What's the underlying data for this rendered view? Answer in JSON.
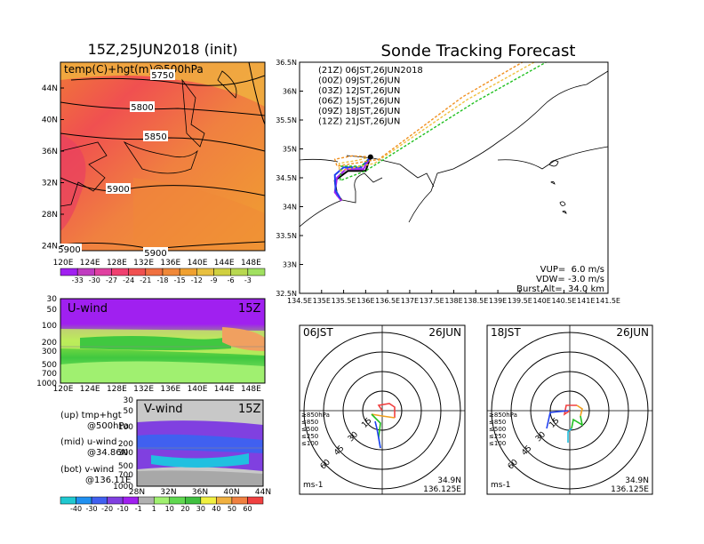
{
  "left_map": {
    "title": "15Z,25JUN2018 (init)",
    "variable_label": "temp(C)+hgt(m)@500hPa",
    "contour_labels": [
      "5750",
      "5800",
      "5850",
      "5900",
      "5900",
      "5900"
    ],
    "lat_labels": [
      "44N",
      "40N",
      "36N",
      "32N",
      "28N",
      "24N"
    ],
    "lon_labels": [
      "120E",
      "124E",
      "128E",
      "132E",
      "136E",
      "140E",
      "144E",
      "148E"
    ]
  },
  "temp_colorbar": {
    "labels": [
      "-33",
      "-30",
      "-27",
      "-24",
      "-21",
      "-18",
      "-15",
      "-12",
      "-9",
      "-6",
      "-3"
    ],
    "colors": [
      "#a020f0",
      "#c03cc0",
      "#e040a0",
      "#f04070",
      "#f05050",
      "#f07040",
      "#f08838",
      "#f0a030",
      "#e8c040",
      "#d0d040",
      "#b8d850",
      "#a0e060"
    ]
  },
  "u_wind": {
    "label": "U-wind",
    "time": "15Z",
    "pressure_labels": [
      "30",
      "50",
      "100",
      "200",
      "300",
      "500",
      "700",
      "1000"
    ],
    "lon_labels": [
      "120E",
      "124E",
      "128E",
      "132E",
      "136E",
      "140E",
      "144E",
      "148E"
    ]
  },
  "v_wind": {
    "label": "V-wind",
    "time": "15Z",
    "pressure_labels": [
      "30",
      "50",
      "100",
      "200",
      "300",
      "500",
      "700",
      "1000"
    ],
    "lat_labels": [
      "28N",
      "32N",
      "36N",
      "40N",
      "44N"
    ]
  },
  "left_legend": {
    "up_1": "(up) tmp+hgt",
    "up_2": "@500hPa",
    "mid_1": "(mid) u-wind",
    "mid_2": "@34.86N",
    "bot_1": "(bot) v-wind",
    "bot_2": "@136.11E"
  },
  "wind_colorbar": {
    "labels": [
      "-40",
      "-30",
      "-20",
      "-10",
      "-1",
      "1",
      "10",
      "20",
      "30",
      "40",
      "50",
      "60"
    ],
    "colors": [
      "#20c8d0",
      "#2090f0",
      "#4060f0",
      "#8040e0",
      "#a020f0",
      "#b0b0b0",
      "#a0f070",
      "#60d850",
      "#40c040",
      "#f0f040",
      "#f0b040",
      "#f08040",
      "#f04040"
    ]
  },
  "sonde": {
    "title": "Sonde Tracking Forecast",
    "legend": [
      {
        "text": "(21Z)  06JST,26JUN2018",
        "color": "#000000"
      },
      {
        "text": "(00Z)  09JST,26JUN",
        "color": "#a020f0"
      },
      {
        "text": "(03Z)  12JST,26JUN",
        "color": "#2040f0"
      },
      {
        "text": "(06Z)  15JST,26JUN",
        "color": "#20c020"
      },
      {
        "text": "(09Z)  18JST,26JUN",
        "color": "#f0c040"
      },
      {
        "text": "(12Z)  21JST,26JUN",
        "color": "#f09020"
      }
    ],
    "vup": "VUP=  6.0 m/s",
    "vdw": "VDW= -3.0 m/s",
    "burst_alt": "Burst Alt=  34.0 km",
    "lat_labels": [
      "36.5N",
      "36N",
      "35.5N",
      "35N",
      "34.5N",
      "34N",
      "33.5N",
      "33N",
      "32.5N"
    ],
    "lon_labels": [
      "134.5E",
      "135E",
      "135.5E",
      "136E",
      "136.5E",
      "137E",
      "137.5E",
      "138E",
      "138.5E",
      "139E",
      "139.5E",
      "140E",
      "140.5E",
      "141E",
      "141.5E"
    ]
  },
  "hodographs": [
    {
      "time_label": "06JST",
      "date_label": "26JUN",
      "lat": "34.9N",
      "lon": "136.125E",
      "unit": "ms-1"
    },
    {
      "time_label": "18JST",
      "date_label": "26JUN",
      "lat": "34.9N",
      "lon": "136.125E",
      "unit": "ms-1"
    }
  ],
  "hodograph_ring_labels": [
    "15",
    "30",
    "45",
    "60"
  ],
  "hodograph_level_labels": [
    "≥850hPa",
    "≤850",
    "≤500",
    "≤250",
    "≤100"
  ],
  "hodograph_level_colors": [
    "#f04040",
    "#f0a020",
    "#20c020",
    "#20c0e0",
    "#2040f0"
  ],
  "chart_data": [
    {
      "type": "line",
      "title": "Sonde Tracking Forecast",
      "xlabel": "",
      "ylabel": "",
      "xlim": [
        134.5,
        141.5
      ],
      "ylim": [
        32.5,
        36.5
      ],
      "series": [
        {
          "name": "(21Z)  06JST,26JUN2018",
          "x": [
            136.11,
            136.0,
            135.6,
            135.3,
            135.35,
            135.45
          ],
          "y": [
            34.86,
            34.62,
            34.62,
            34.45,
            34.2,
            34.12
          ]
        },
        {
          "name": "(00Z)  09JST,26JUN",
          "x": [
            136.11,
            135.95,
            135.55,
            135.35,
            135.3,
            135.45
          ],
          "y": [
            34.86,
            34.65,
            34.65,
            34.5,
            34.25,
            34.1
          ]
        },
        {
          "name": "(03Z)  12JST,26JUN",
          "x": [
            136.11,
            135.9,
            135.5,
            135.3,
            135.32,
            135.42
          ],
          "y": [
            34.86,
            34.68,
            34.68,
            34.55,
            34.28,
            34.15
          ]
        },
        {
          "name": "(06Z)  15JST,26JUN",
          "x": [
            136.11,
            135.9,
            135.45,
            135.42,
            136.0,
            138.5,
            141.5
          ],
          "y": [
            34.86,
            34.7,
            34.7,
            34.45,
            34.62,
            35.82,
            37.1
          ]
        },
        {
          "name": "(09Z)  18JST,26JUN",
          "x": [
            136.11,
            135.8,
            135.4,
            135.4,
            136.2,
            138.3,
            141.0
          ],
          "y": [
            34.86,
            34.8,
            34.75,
            34.62,
            34.75,
            35.85,
            37.0
          ]
        },
        {
          "name": "(12Z)  21JST,26JUN",
          "x": [
            136.11,
            135.7,
            135.3,
            135.35,
            136.3,
            138.2,
            140.8
          ],
          "y": [
            34.86,
            34.88,
            34.82,
            34.7,
            34.82,
            35.9,
            37.05
          ]
        }
      ]
    }
  ]
}
